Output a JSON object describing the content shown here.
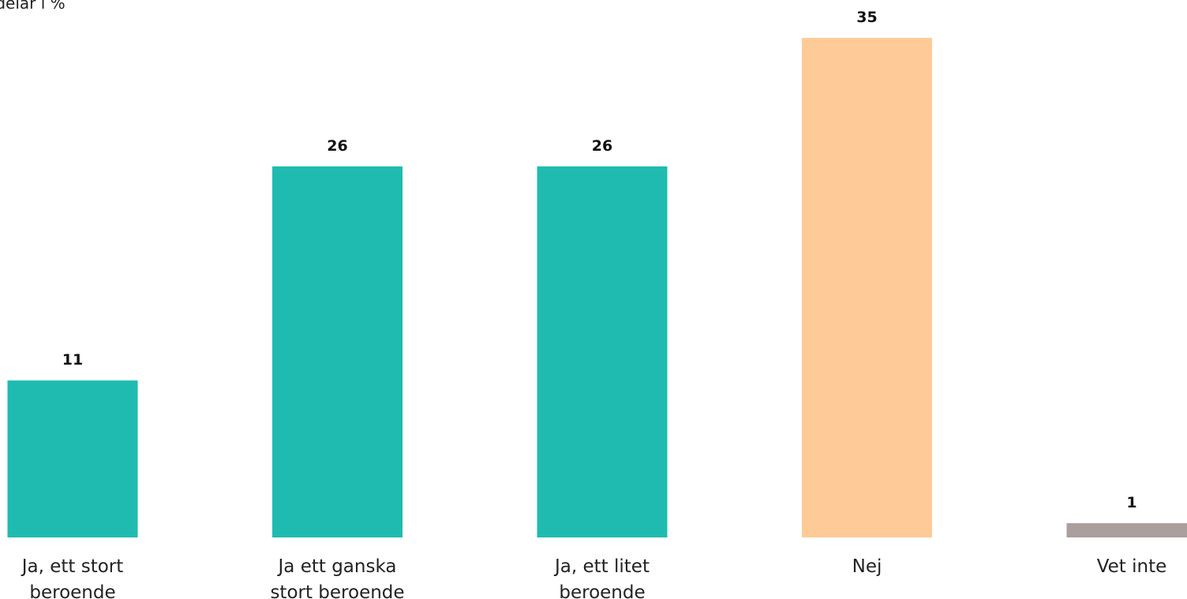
{
  "chart_data": {
    "type": "bar",
    "title": "Andelar i %",
    "categories": [
      [
        "Ja, ett stort",
        "beroende"
      ],
      [
        "Ja ett ganska",
        "stort beroende"
      ],
      [
        "Ja, ett litet",
        "beroende"
      ],
      [
        "Nej"
      ],
      [
        "Vet inte"
      ]
    ],
    "values": [
      11,
      26,
      26,
      35,
      1
    ],
    "colors": [
      "#20bbb0",
      "#20bbb0",
      "#20bbb0",
      "#fecb98",
      "#ab9f9d"
    ],
    "data_labels": true,
    "grid": false,
    "legend": "none",
    "xlabel": "",
    "ylabel": "",
    "ylim": [
      0,
      35
    ]
  }
}
